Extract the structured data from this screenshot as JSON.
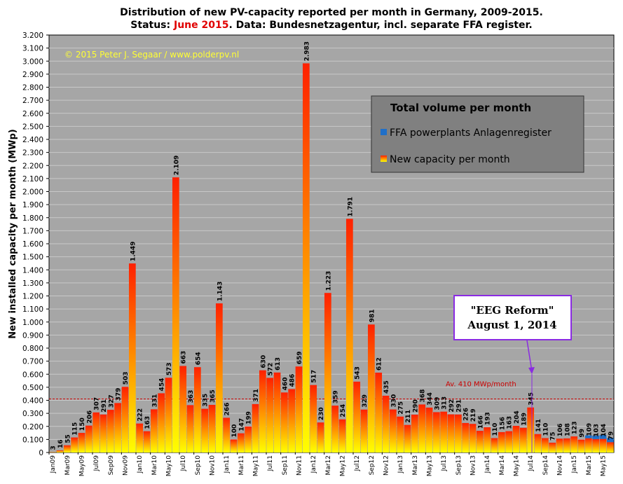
{
  "title": {
    "line1": "Distribution  of new PV-capacity reported per month in Germany, 2009-2015.",
    "line2_part1": "Status: ",
    "line2_highlight": "June 2015",
    "line2_part2": ". Data: Bundesnetzagentur, incl.  separate FFA register."
  },
  "copyright": "© 2015  Peter J. Segaar / www.polderpv.nl",
  "legend": {
    "title": "Total volume per month",
    "items": [
      {
        "label": "FFA powerplants Anlagenregister",
        "color": "#1f6fc8"
      },
      {
        "label": "New capacity per month",
        "color": "#ff9900"
      }
    ]
  },
  "annotation": {
    "line1": "\"EEG Reform\"",
    "line2": "August 1, 2014",
    "border_color": "#8a2be2"
  },
  "average": {
    "label": "Av. 410 MWp/month",
    "value": 410,
    "color": "#cc0000"
  },
  "colors": {
    "plot_bg": "#a6a6a6",
    "bar_top": "#ff2200",
    "bar_bottom": "#ffff00",
    "ffa": "#1f6fc8"
  },
  "chart_data": {
    "type": "bar",
    "title": "Distribution  of new PV-capacity reported per month in Germany, 2009-2015.",
    "ylabel": "New installed capacity per month (MWp)",
    "xlabel": "",
    "ylim": [
      0,
      3200
    ],
    "ytick_step": 100,
    "grid": true,
    "legend_position": "top-right",
    "x_tick_labels": [
      "Jan09",
      "Mar09",
      "May09",
      "Jul09",
      "Sep09",
      "Nov09",
      "Jan10",
      "Mar10",
      "May10",
      "Jul10",
      "Sep10",
      "Nov10",
      "Jan11",
      "Mar11",
      "May11",
      "Jul11",
      "Sep11",
      "Nov11",
      "Jan12",
      "Mar12",
      "May12",
      "Jul12",
      "Sep12",
      "Nov12",
      "Jan13",
      "Mar13",
      "May13",
      "Jul13",
      "Sep13",
      "Nov13",
      "Jan14",
      "Mar14",
      "May14",
      "Jul14",
      "Sep14",
      "Nov14",
      "Jan15",
      "Mar15",
      "May15"
    ],
    "series": [
      {
        "name": "New capacity per month",
        "values": [
          3,
          16,
          55,
          115,
          150,
          206,
          307,
          291,
          327,
          379,
          503,
          1449,
          222,
          163,
          331,
          454,
          573,
          2109,
          663,
          363,
          654,
          335,
          365,
          1143,
          266,
          100,
          147,
          199,
          371,
          630,
          572,
          613,
          460,
          486,
          659,
          2983,
          517,
          230,
          1223,
          359,
          254,
          1791,
          543,
          329,
          981,
          612,
          435,
          330,
          275,
          211,
          290,
          368,
          344,
          309,
          313,
          292,
          291,
          226,
          219,
          166,
          193,
          110,
          156,
          163,
          204,
          189,
          345,
          141,
          110,
          75,
          106,
          108,
          123,
          99,
          109,
          103,
          104,
          79
        ],
        "labels": [
          "3",
          "16",
          "55",
          "115",
          "150",
          "206",
          "307",
          "291",
          "327",
          "379",
          "503",
          "1.449",
          "222",
          "163",
          "331",
          "454",
          "573",
          "2.109",
          "663",
          "363",
          "654",
          "335",
          "365",
          "1.143",
          "266",
          "100",
          "147",
          "199",
          "371",
          "630",
          "572",
          "613",
          "460",
          "486",
          "659",
          "2.983",
          "517",
          "230",
          "1.223",
          "359",
          "254",
          "1.791",
          "543",
          "329",
          "981",
          "612",
          "435",
          "330",
          "275",
          "211",
          "290",
          "368",
          "344",
          "309",
          "313",
          "292",
          "291",
          "226",
          "219",
          "166",
          "193",
          "110",
          "156",
          "163",
          "204",
          "189",
          "345",
          "141",
          "110",
          "75",
          "106",
          "108",
          "123",
          "99",
          "109",
          "103",
          "104",
          "79"
        ]
      },
      {
        "name": "FFA powerplants Anlagenregister",
        "months_from_index": 67,
        "values": [
          0,
          0,
          0,
          0,
          0,
          0,
          0,
          22,
          26,
          30,
          32
        ]
      }
    ]
  }
}
